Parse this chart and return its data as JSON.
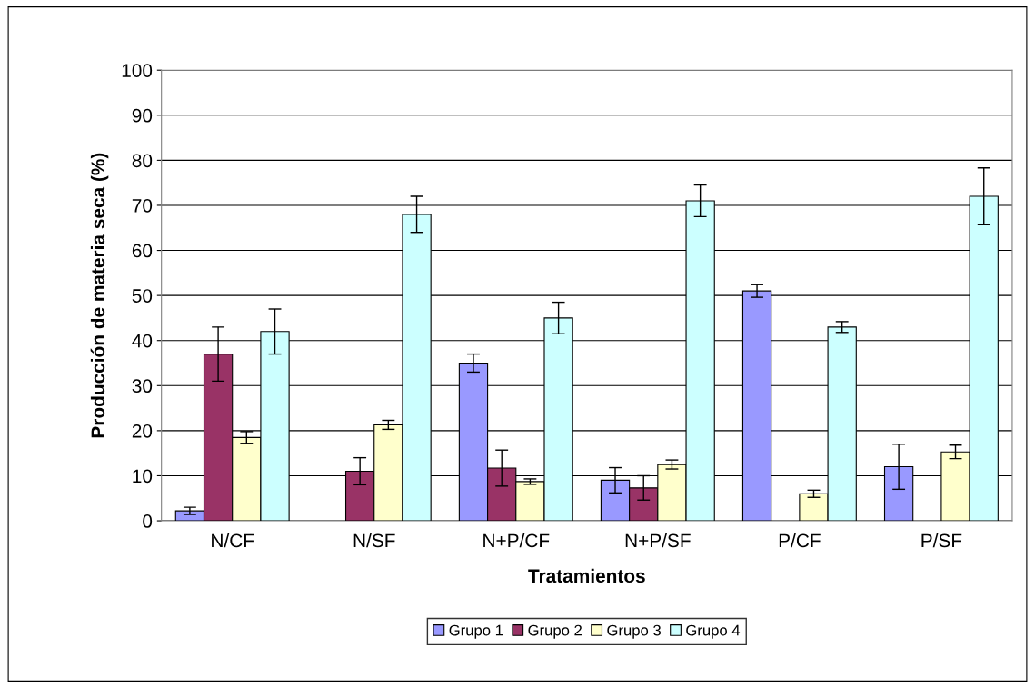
{
  "chart_data": {
    "type": "bar",
    "xlabel": "Tratamientos",
    "ylabel": "Producción de materia seca (%)",
    "categories": [
      "N/CF",
      "N/SF",
      "N+P/CF",
      "N+P/SF",
      "P/CF",
      "P/SF"
    ],
    "series": [
      {
        "name": "Grupo 1",
        "color": "#9999ff",
        "values": [
          2.2,
          0,
          35,
          9,
          51,
          12
        ],
        "errors": [
          0.8,
          null,
          2,
          2.8,
          1.4,
          5
        ]
      },
      {
        "name": "Grupo 2",
        "color": "#993366",
        "values": [
          37,
          11,
          11.7,
          7.3,
          0,
          0
        ],
        "errors": [
          6,
          3,
          4,
          2.7,
          null,
          null
        ]
      },
      {
        "name": "Grupo 3",
        "color": "#ffffcc",
        "values": [
          18.5,
          21.3,
          8.7,
          12.5,
          6,
          15.3
        ],
        "errors": [
          1.3,
          1,
          0.6,
          1,
          0.8,
          1.5
        ]
      },
      {
        "name": "Grupo 4",
        "color": "#ccffff",
        "values": [
          42,
          68,
          45,
          71,
          43,
          72
        ],
        "errors": [
          5,
          4,
          3.5,
          3.5,
          1.2,
          6.3
        ]
      }
    ],
    "ylim": [
      0,
      100
    ],
    "yticks": [
      0,
      10,
      20,
      30,
      40,
      50,
      60,
      70,
      80,
      90,
      100
    ],
    "grid": "y",
    "legend": "bottom"
  }
}
